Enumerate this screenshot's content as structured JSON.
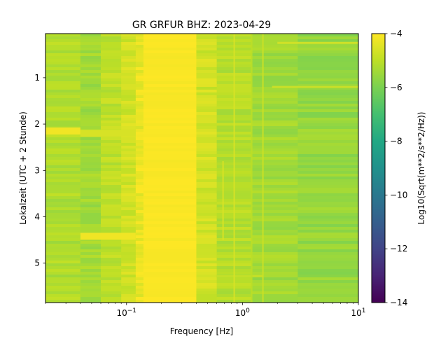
{
  "chart_data": {
    "type": "heatmap",
    "title": "GR GRFUR  BHZ: 2023-04-29",
    "xlabel": "Frequency [Hz]",
    "ylabel": "Lokalzeit (UTC + 2 Stunde)",
    "x_scale": "log",
    "xlim": [
      0.02,
      10
    ],
    "ylim": [
      5.85,
      0.05
    ],
    "x_ticks": [
      {
        "base": "10",
        "exp": "−1",
        "value": 0.1
      },
      {
        "base": "10",
        "exp": "0",
        "value": 1
      },
      {
        "base": "10",
        "exp": "1",
        "value": 10
      }
    ],
    "y_ticks": [
      {
        "label": "1",
        "value": 1
      },
      {
        "label": "2",
        "value": 2
      },
      {
        "label": "3",
        "value": 3
      },
      {
        "label": "4",
        "value": 4
      },
      {
        "label": "5",
        "value": 5
      }
    ],
    "colorbar": {
      "label": "Log10(Sqrt(m**2/s**2/Hz))",
      "colormap": "viridis",
      "range": [
        -14,
        -4
      ],
      "ticks": [
        {
          "label": "−4",
          "value": -4
        },
        {
          "label": "−6",
          "value": -6
        },
        {
          "label": "−8",
          "value": -8
        },
        {
          "label": "−10",
          "value": -10
        },
        {
          "label": "−12",
          "value": -12
        },
        {
          "label": "−14",
          "value": -14
        }
      ]
    },
    "frequency_bands": [
      {
        "f_min": 0.02,
        "f_max": 0.04,
        "value": -5.2
      },
      {
        "f_min": 0.04,
        "f_max": 0.06,
        "value": -5.4
      },
      {
        "f_min": 0.06,
        "f_max": 0.09,
        "value": -5.0
      },
      {
        "f_min": 0.09,
        "f_max": 0.12,
        "value": -4.7
      },
      {
        "f_min": 0.12,
        "f_max": 0.14,
        "value": -4.3
      },
      {
        "f_min": 0.14,
        "f_max": 0.4,
        "value": -4.05
      },
      {
        "f_min": 0.4,
        "f_max": 0.6,
        "value": -4.7
      },
      {
        "f_min": 0.6,
        "f_max": 1.2,
        "value": -5.1
      },
      {
        "f_min": 1.2,
        "f_max": 3.0,
        "value": -5.4
      },
      {
        "f_min": 3.0,
        "f_max": 10,
        "value": -5.6
      }
    ],
    "features": [
      {
        "kind": "horizontal-band",
        "t": 2.15,
        "f_min": 0.02,
        "f_max": 0.04,
        "value": -4.2
      },
      {
        "kind": "horizontal-band",
        "t": 2.2,
        "f_min": 0.04,
        "f_max": 0.12,
        "value": -4.6
      },
      {
        "kind": "horizontal-band",
        "t": 4.42,
        "f_min": 0.04,
        "f_max": 0.12,
        "value": -4.2
      },
      {
        "kind": "horizontal-line",
        "t": 0.25,
        "f_min": 2.0,
        "f_max": 10,
        "value": -4.6
      },
      {
        "kind": "horizontal-line",
        "t": 1.2,
        "f_min": 1.8,
        "f_max": 10,
        "value": -4.7
      },
      {
        "kind": "horizontal-line",
        "t": 2.0,
        "f_min": 0.6,
        "f_max": 1.2,
        "value": -4.8
      },
      {
        "kind": "horizontal-line",
        "t": 5.28,
        "f_min": 0.6,
        "f_max": 1.5,
        "value": -4.8
      },
      {
        "kind": "vertical-line",
        "f": 0.85,
        "t_min": 0.05,
        "t_max": 5.85,
        "value": -4.6
      },
      {
        "kind": "vertical-line",
        "f": 1.5,
        "t_min": 0.05,
        "t_max": 5.85,
        "value": -4.8
      },
      {
        "kind": "vertical-line",
        "f": 0.68,
        "t_min": 2.8,
        "t_max": 4.5,
        "value": -4.6
      },
      {
        "kind": "vertical-line",
        "f": 1.2,
        "t_min": 0.05,
        "t_max": 5.85,
        "value": -5.0
      }
    ]
  }
}
